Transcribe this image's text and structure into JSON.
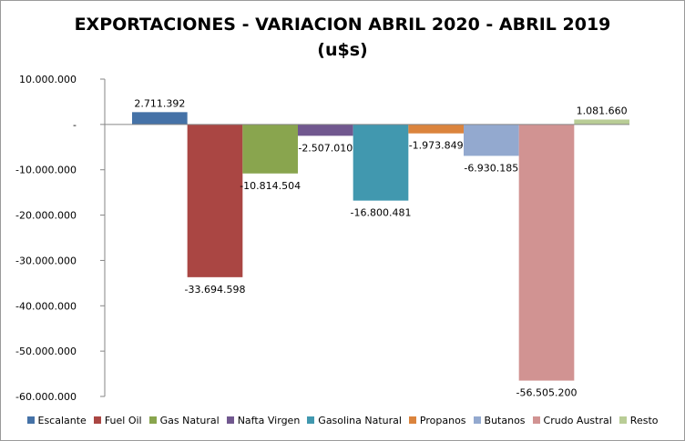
{
  "chart_data": {
    "type": "bar",
    "title_line1": "EXPORTACIONES - VARIACION ABRIL 2020 - ABRIL 2019",
    "title_line2": "(u$s)",
    "ylim": [
      -60000000,
      10000000
    ],
    "yticks": [
      10000000,
      0,
      -10000000,
      -20000000,
      -30000000,
      -40000000,
      -50000000,
      -60000000
    ],
    "ytick_labels": [
      "10.000.000",
      "-",
      "-10.000.000",
      "-20.000.000",
      "-30.000.000",
      "-40.000.000",
      "-50.000.000",
      "-60.000.000"
    ],
    "grid": false,
    "legend_position": "bottom",
    "series": [
      {
        "name": "Escalante",
        "value": 2711392,
        "label": "2.711.392",
        "color": "#4572A7"
      },
      {
        "name": "Fuel Oil",
        "value": -33694598,
        "label": "-33.694.598",
        "color": "#AA4643"
      },
      {
        "name": "Gas Natural",
        "value": -10814504,
        "label": "-10.814.504",
        "color": "#89A54E"
      },
      {
        "name": "Nafta Virgen",
        "value": -2507010,
        "label": "-2.507.010",
        "color": "#71588F"
      },
      {
        "name": "Gasolina Natural",
        "value": -16800481,
        "label": "-16.800.481",
        "color": "#4198AF"
      },
      {
        "name": "Propanos",
        "value": -1973849,
        "label": "-1.973.849",
        "color": "#DB843D"
      },
      {
        "name": "Butanos",
        "value": -6930185,
        "label": "-6.930.185",
        "color": "#93A9CF"
      },
      {
        "name": "Crudo Austral",
        "value": -56505200,
        "label": "-56.505.200",
        "color": "#D19392"
      },
      {
        "name": "Resto",
        "value": 1081660,
        "label": "1.081.660",
        "color": "#B9CD96"
      }
    ]
  }
}
